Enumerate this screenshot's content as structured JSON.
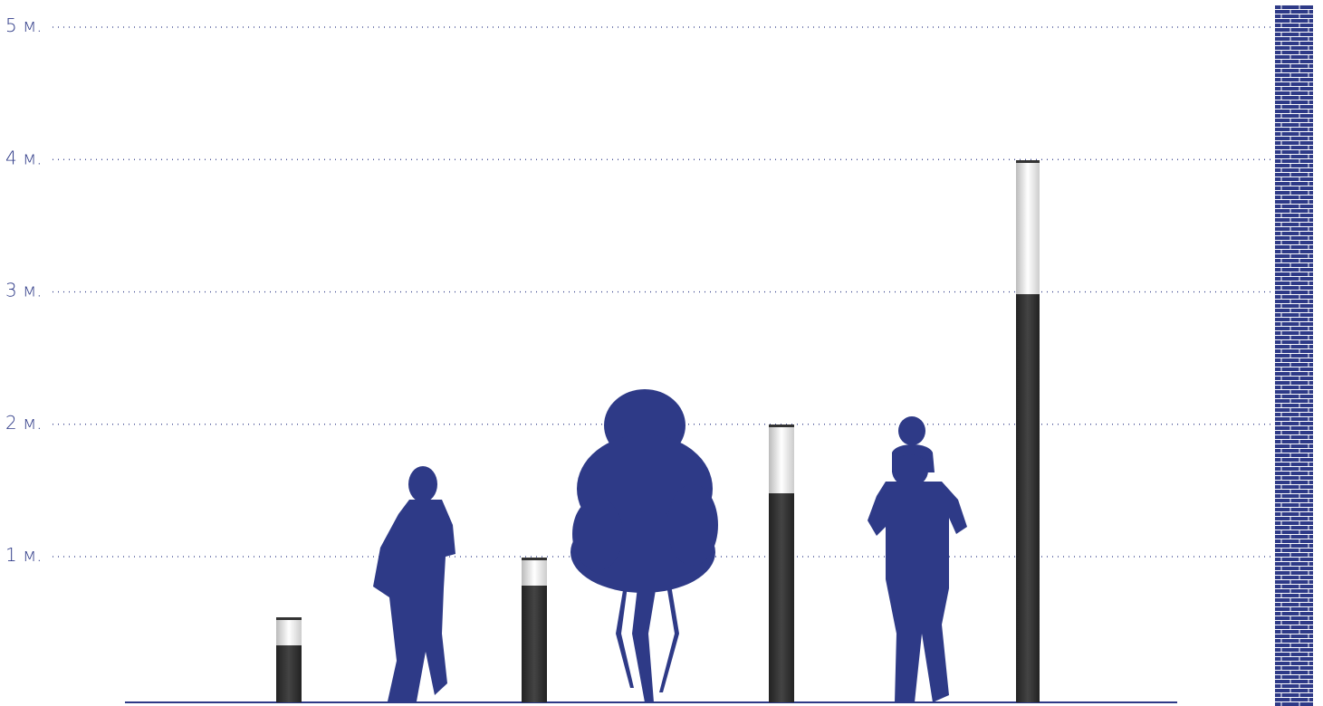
{
  "scale": {
    "labels": [
      "5 м.",
      "4 м.",
      "3 м.",
      "2 м.",
      "1 м."
    ]
  }
}
